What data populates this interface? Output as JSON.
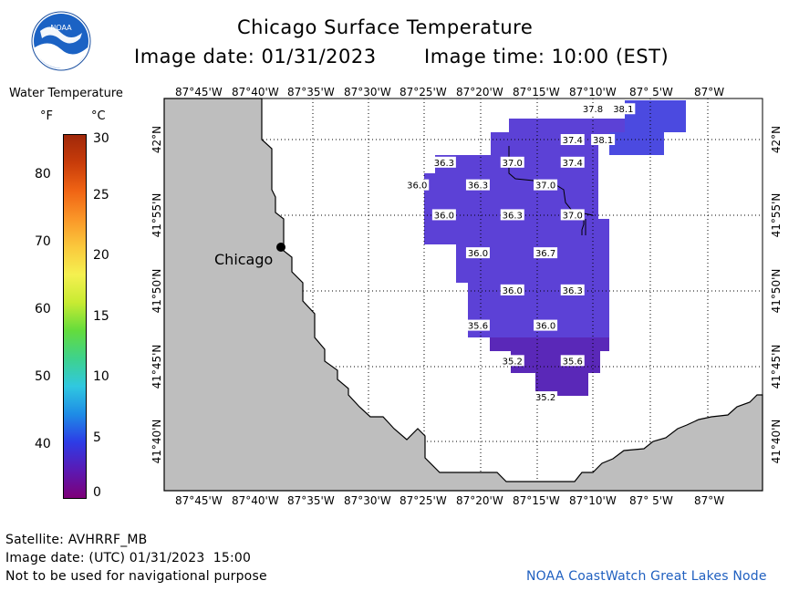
{
  "header": {
    "title": "Chicago Surface Temperature",
    "image_date": "Image date: 01/31/2023",
    "image_time": "Image time: 10:00 (EST)",
    "logo_text": "NOAA"
  },
  "legend": {
    "title": "Water Temperature",
    "unit_f": "°F",
    "unit_c": "°C",
    "f_ticks": [
      "80",
      "70",
      "60",
      "50",
      "40"
    ],
    "c_ticks": [
      "30",
      "25",
      "20",
      "15",
      "10",
      "5",
      "0"
    ],
    "colors": [
      "#7d0078",
      "#5a1ab4",
      "#2d3ce6",
      "#1e8ce6",
      "#30c8e0",
      "#3ed28c",
      "#64dc3c",
      "#c8eb32",
      "#f5f050",
      "#fac83c",
      "#fa9628",
      "#f06414",
      "#c83c0a",
      "#a0280a"
    ]
  },
  "map": {
    "city_label": "Chicago",
    "lon_labels": [
      "87°45'W",
      "87°40'W",
      "87°35'W",
      "87°30'W",
      "87°25'W",
      "87°20'W",
      "87°15'W",
      "87°10'W",
      "87° 5'W",
      "87°W"
    ],
    "lat_labels": [
      "42°N",
      "41°55'N",
      "41°50'N",
      "41°45'N",
      "41°40'N"
    ],
    "colors": {
      "land": "#bebebe",
      "water_temp": "#5a3fd0",
      "water_warm": "#4a4ad8"
    },
    "temperature_labels": [
      {
        "value": "37.8",
        "lon": -87.17,
        "lat": 42.034
      },
      {
        "value": "38.1",
        "lon": -87.125,
        "lat": 42.034
      },
      {
        "value": "37.4",
        "lon": -87.2,
        "lat": 42.0
      },
      {
        "value": "38.1",
        "lon": -87.155,
        "lat": 42.0
      },
      {
        "value": "36.3",
        "lon": -87.39,
        "lat": 41.975
      },
      {
        "value": "37.0",
        "lon": -87.289,
        "lat": 41.975
      },
      {
        "value": "37.4",
        "lon": -87.2,
        "lat": 41.975
      },
      {
        "value": "36.0",
        "lon": -87.43,
        "lat": 41.95
      },
      {
        "value": "36.3",
        "lon": -87.34,
        "lat": 41.95
      },
      {
        "value": "37.0",
        "lon": -87.24,
        "lat": 41.95
      },
      {
        "value": "36.0",
        "lon": -87.39,
        "lat": 41.917
      },
      {
        "value": "36.3",
        "lon": -87.289,
        "lat": 41.917
      },
      {
        "value": "37.0",
        "lon": -87.2,
        "lat": 41.917
      },
      {
        "value": "36.0",
        "lon": -87.34,
        "lat": 41.875
      },
      {
        "value": "36.7",
        "lon": -87.24,
        "lat": 41.875
      },
      {
        "value": "36.0",
        "lon": -87.289,
        "lat": 41.834
      },
      {
        "value": "36.3",
        "lon": -87.2,
        "lat": 41.834
      },
      {
        "value": "35.6",
        "lon": -87.34,
        "lat": 41.795
      },
      {
        "value": "36.0",
        "lon": -87.24,
        "lat": 41.795
      },
      {
        "value": "35.2",
        "lon": -87.289,
        "lat": 41.756
      },
      {
        "value": "35.6",
        "lon": -87.2,
        "lat": 41.756
      },
      {
        "value": "35.2",
        "lon": -87.24,
        "lat": 41.716
      }
    ]
  },
  "footer": {
    "satellite": "Satellite: AVHRRF_MB",
    "utc_date": "Image date: (UTC) 01/31/2023  15:00",
    "disclaimer": "Not to be used for navigational purpose",
    "credit": "NOAA CoastWatch Great Lakes Node"
  }
}
